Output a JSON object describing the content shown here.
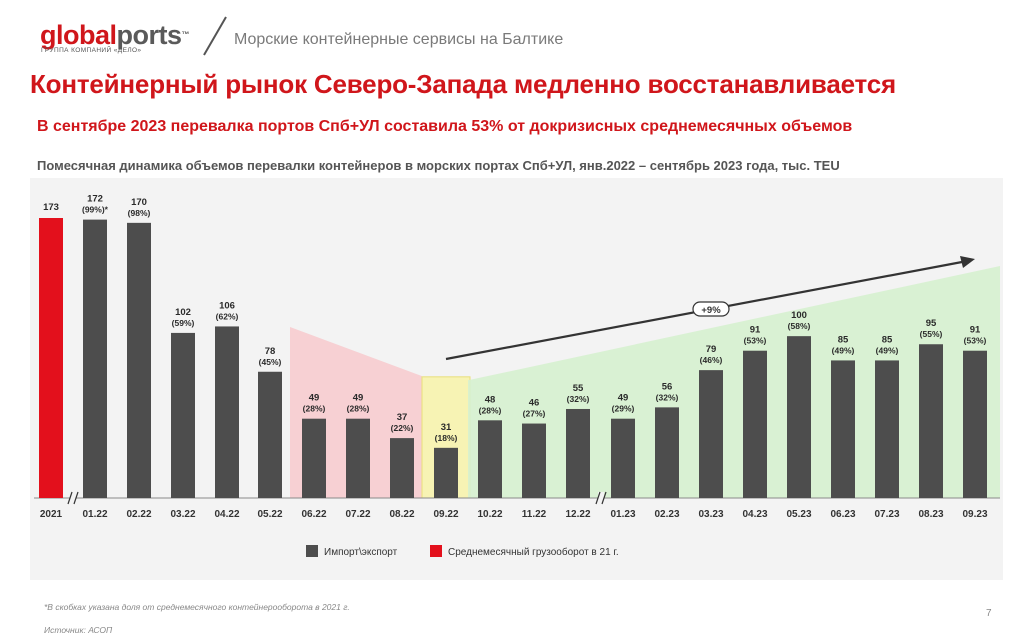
{
  "header": {
    "logo_global": "global",
    "logo_ports": "ports",
    "logo_tm": "™",
    "logo_sub": "ГРУППА КОМПАНИЙ «ДЕЛО»",
    "subtitle": "Морские контейнерные сервисы на Балтике"
  },
  "title": "Контейнерный рынок Северо-Запада медленно восстанавливается",
  "subtitle": "В сентябре 2023 перевалка портов Спб+УЛ составила 53% от докризисных среднемесячных объемов",
  "chart_caption": "Помесячная динамика объемов перевалки контейнеров в морских портах Спб+УЛ, янв.2022 – сентябрь 2023 года, тыс. TEU",
  "chart_data": {
    "type": "bar",
    "categories": [
      "2021",
      "01.22",
      "02.22",
      "03.22",
      "04.22",
      "05.22",
      "06.22",
      "07.22",
      "08.22",
      "09.22",
      "10.22",
      "11.22",
      "12.22",
      "01.23",
      "02.23",
      "03.23",
      "04.23",
      "05.23",
      "06.23",
      "07.23",
      "08.23",
      "09.23"
    ],
    "values": [
      173,
      172,
      170,
      102,
      106,
      78,
      49,
      49,
      37,
      31,
      48,
      46,
      55,
      49,
      56,
      79,
      91,
      100,
      85,
      85,
      95,
      91
    ],
    "pct_labels": [
      "",
      "(99%)*",
      "(98%)",
      "(59%)",
      "(62%)",
      "(45%)",
      "(28%)",
      "(28%)",
      "(22%)",
      "(18%)",
      "(28%)",
      "(27%)",
      "(32%)",
      "(29%)",
      "(32%)",
      "(46%)",
      "(53%)",
      "(58%)",
      "(49%)",
      "(49%)",
      "(55%)",
      "(53%)"
    ],
    "ylim": [
      0,
      185
    ],
    "series": [
      {
        "name": "Импорт\\экспорт",
        "color": "#4d4d4d"
      },
      {
        "name": "Среднемесячный грузооборот в 21 г.",
        "color": "#e3101c"
      }
    ],
    "annotation": "+9%",
    "legend_position": "bottom-center"
  },
  "footnote": "*В скобках указана доля от среднемесячного контейнерооборота в 2021 г.",
  "source": "Источник: АСОП",
  "page_number": "7"
}
